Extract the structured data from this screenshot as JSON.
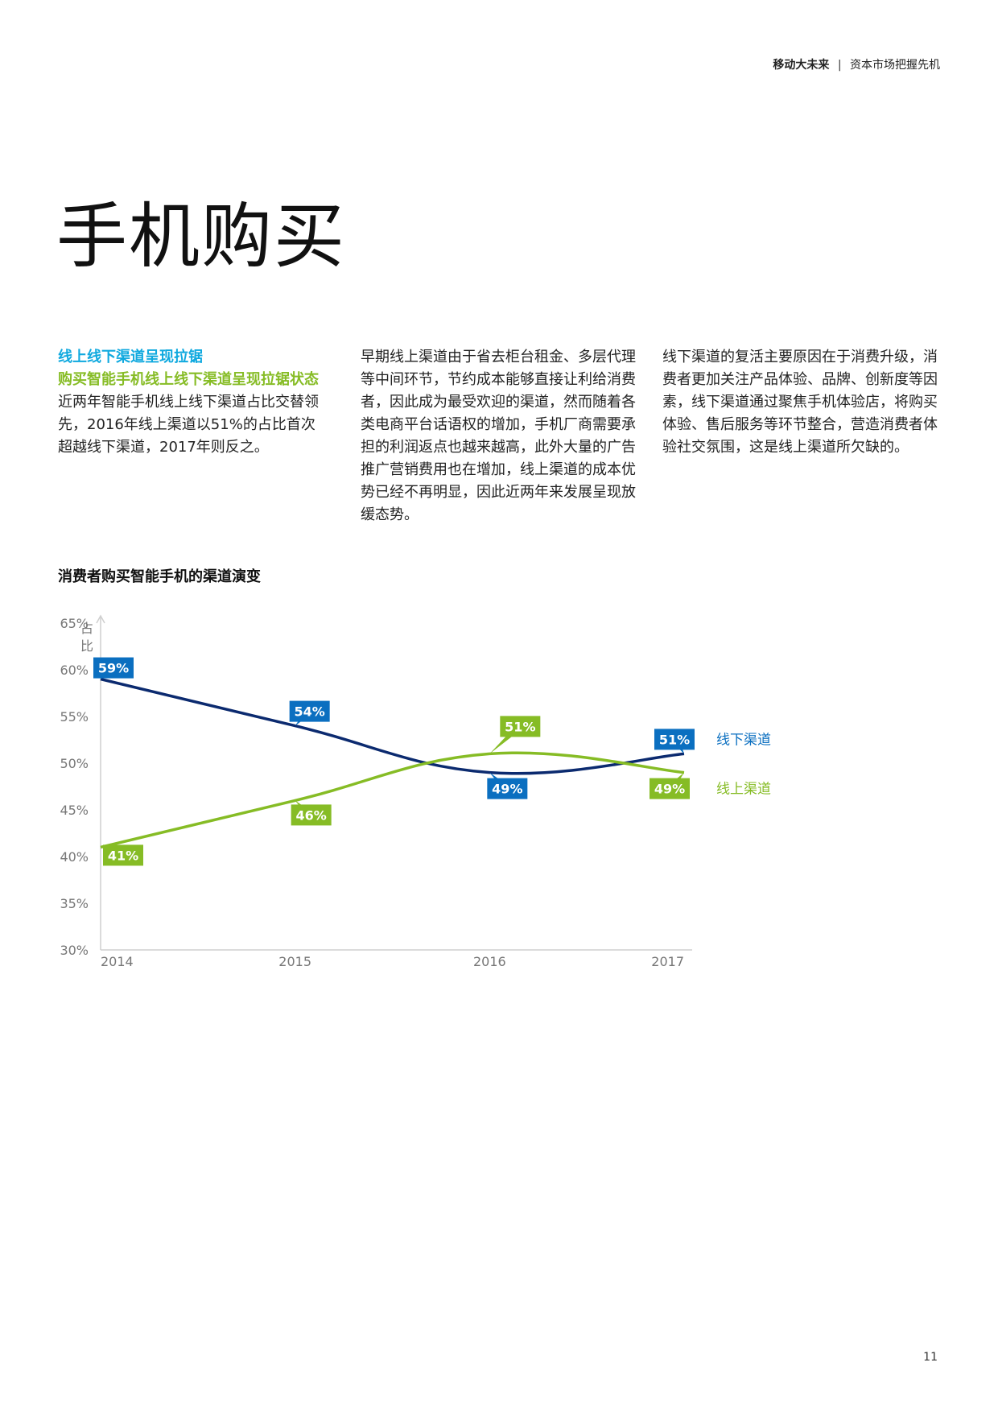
{
  "header": {
    "section": "移动大未来",
    "separator": "|",
    "subtitle": "资本市场把握先机"
  },
  "title": "手机购买",
  "column1": {
    "subhead_blue": "线上线下渠道呈现拉锯",
    "subhead_green": "购买智能手机线上线下渠道呈现拉锯状态",
    "body": "近两年智能手机线上线下渠道占比交替领先，2016年线上渠道以51%的占比首次超越线下渠道，2017年则反之。"
  },
  "column2": {
    "body": "早期线上渠道由于省去柜台租金、多层代理等中间环节，节约成本能够直接让利给消费者，因此成为最受欢迎的渠道，然而随着各类电商平台话语权的增加，手机厂商需要承担的利润返点也越来越高，此外大量的广告推广营销费用也在增加，线上渠道的成本优势已经不再明显，因此近两年来发展呈现放缓态势。"
  },
  "column3": {
    "body": "线下渠道的复活主要原因在于消费升级，消费者更加关注产品体验、品牌、创新度等因素，线下渠道通过聚焦手机体验店，将购买体验、售后服务等环节整合，营造消费者体验社交氛围，这是线上渠道所欠缺的。"
  },
  "chart_title": "消费者购买智能手机的渠道演变",
  "chart_data": {
    "type": "line",
    "title": "消费者购买智能手机的渠道演变",
    "ylabel": "占比",
    "xlabel": "",
    "categories": [
      "2014",
      "2015",
      "2016",
      "2017"
    ],
    "y_ticks": [
      "30%",
      "35%",
      "40%",
      "45%",
      "50%",
      "55%",
      "60%",
      "65%"
    ],
    "ylim": [
      30,
      65
    ],
    "series": [
      {
        "name": "线下渠道",
        "values": [
          59,
          54,
          49,
          51
        ],
        "labels": [
          "59%",
          "54%",
          "49%",
          "51%"
        ],
        "color": "#0b2a6f",
        "label_color": "#0b6fc0"
      },
      {
        "name": "线上渠道",
        "values": [
          41,
          46,
          51,
          49
        ],
        "labels": [
          "41%",
          "46%",
          "51%",
          "49%"
        ],
        "color": "#86bc25",
        "label_color": "#86bc25"
      }
    ]
  },
  "page_number": "11"
}
